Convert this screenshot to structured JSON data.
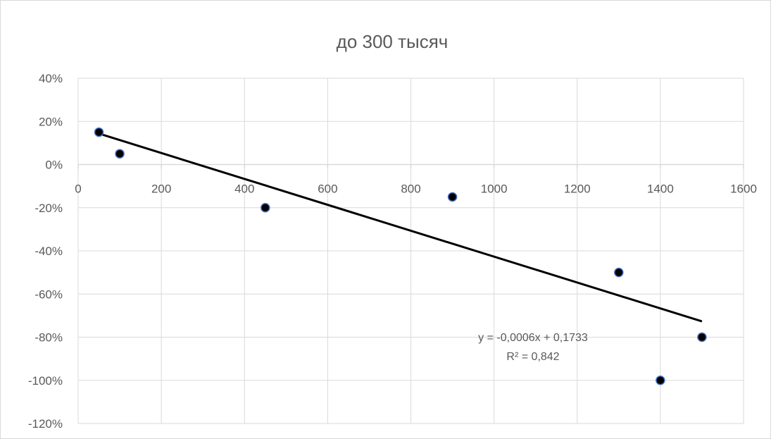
{
  "chart_data": {
    "type": "scatter",
    "title": "до 300 тысяч",
    "xlabel": "",
    "ylabel": "",
    "xlim": [
      0,
      1600
    ],
    "ylim": [
      -1.2,
      0.4
    ],
    "x_ticks": [
      0,
      200,
      400,
      600,
      800,
      1000,
      1200,
      1400,
      1600
    ],
    "x_tick_labels": [
      "0",
      "200",
      "400",
      "600",
      "800",
      "1000",
      "1200",
      "1400",
      "1600"
    ],
    "y_ticks": [
      0.4,
      0.2,
      0,
      -0.2,
      -0.4,
      -0.6,
      -0.8,
      -1.0,
      -1.2
    ],
    "y_tick_labels": [
      "40%",
      "20%",
      "0%",
      "-20%",
      "-40%",
      "-60%",
      "-80%",
      "-100%",
      "-120%"
    ],
    "grid": true,
    "legend": "none",
    "series": [
      {
        "x": [
          50,
          100,
          450,
          900,
          1300,
          1400,
          1500
        ],
        "y": [
          0.15,
          0.05,
          -0.2,
          -0.15,
          -0.5,
          -1.0,
          -0.8
        ],
        "marker_color": "#000000",
        "marker_edge_color": "#4472c4"
      }
    ],
    "trendline": {
      "type": "linear",
      "slope": -0.0006,
      "intercept": 0.1733,
      "x_range": [
        50,
        1500
      ],
      "color": "#000000",
      "equation_label": "y = -0,0006x + 0,1733",
      "r2_label": "R² = 0,842"
    },
    "colors": {
      "grid": "#d9d9d9",
      "text": "#595959",
      "background": "#ffffff"
    }
  }
}
